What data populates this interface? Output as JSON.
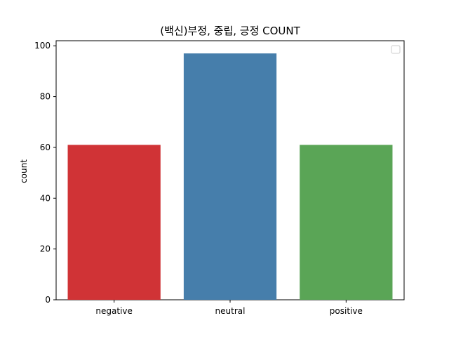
{
  "chart_data": {
    "type": "bar",
    "title": "(백신)부정, 중립, 긍정 COUNT",
    "xlabel": "",
    "ylabel": "count",
    "categories": [
      "negative",
      "neutral",
      "positive"
    ],
    "values": [
      61,
      97,
      61
    ],
    "colors": [
      "#d03336",
      "#467eab",
      "#5aa556"
    ],
    "ylim": [
      0,
      102
    ],
    "yticks": [
      0,
      20,
      40,
      60,
      80,
      100
    ],
    "legend": "top-right",
    "grid": false
  }
}
